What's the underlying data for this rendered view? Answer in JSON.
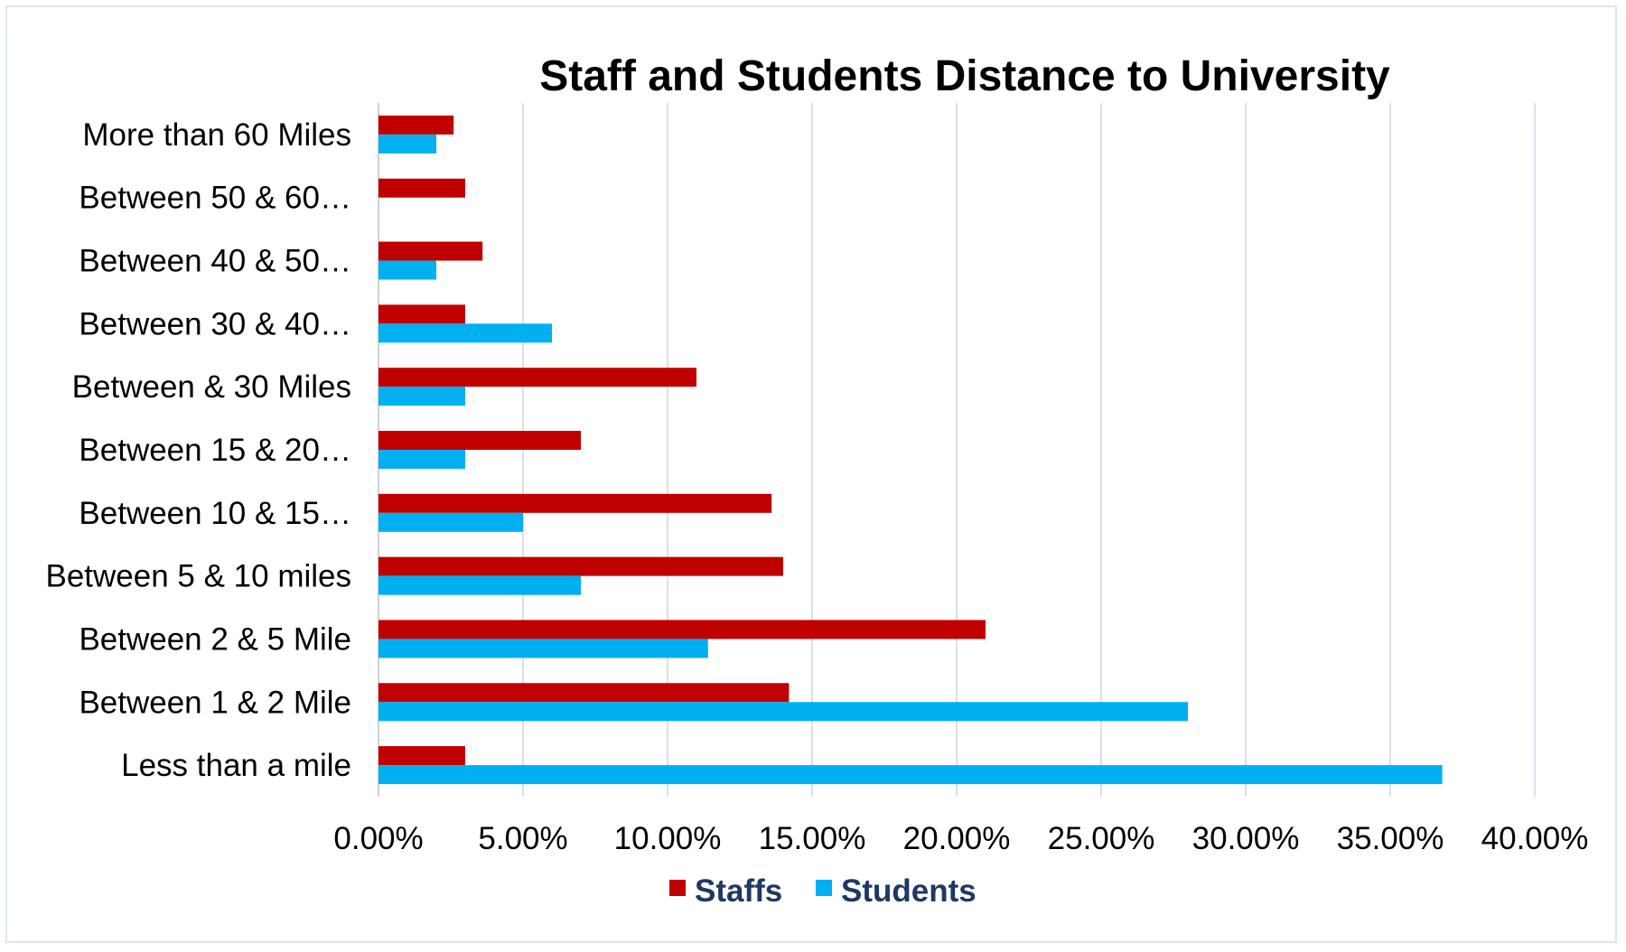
{
  "chart_data": {
    "type": "bar",
    "orientation": "horizontal",
    "title": "Staff and Students Distance to University",
    "categories": [
      "Less than a mile",
      "Between 1 & 2 Mile",
      "Between 2 & 5 Mile",
      "Between 5 & 10 miles",
      "Between 10 & 15…",
      "Between 15 & 20…",
      "Between & 30 Miles",
      "Between 30 & 40…",
      "Between 40 & 50…",
      "Between 50 & 60…",
      "More than 60 Miles"
    ],
    "series": [
      {
        "name": "Staffs",
        "color": "#c00000",
        "values": [
          3.0,
          14.2,
          21.0,
          14.0,
          13.6,
          7.0,
          11.0,
          3.0,
          3.6,
          3.0,
          2.6
        ]
      },
      {
        "name": "Students",
        "color": "#00b0f0",
        "values": [
          36.8,
          28.0,
          11.4,
          7.0,
          5.0,
          3.0,
          3.0,
          6.0,
          2.0,
          0.0,
          2.0
        ]
      }
    ],
    "xlim": [
      0,
      40
    ],
    "xticks": [
      "0.00%",
      "5.00%",
      "10.00%",
      "15.00%",
      "20.00%",
      "25.00%",
      "30.00%",
      "35.00%",
      "40.00%"
    ],
    "xtick_values": [
      0,
      5,
      10,
      15,
      20,
      25,
      30,
      35,
      40
    ],
    "xlabel": "",
    "ylabel": "",
    "grid": true,
    "legend_position": "bottom"
  }
}
